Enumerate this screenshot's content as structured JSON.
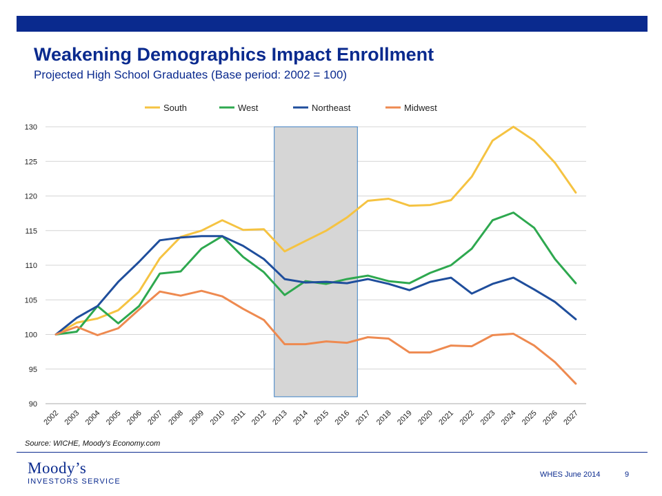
{
  "slide": {
    "title": "Weakening Demographics Impact Enrollment",
    "subtitle": "Projected High School Graduates (Base period: 2002 = 100)",
    "source": "Source: WICHE, Moody's Economy.com",
    "footer_text": "WHES June 2014",
    "page_number": "9",
    "logo_line1": "Moody’s",
    "logo_line2": "INVESTORS SERVICE",
    "brand_color": "#0a2a8e"
  },
  "chart_data": {
    "type": "line",
    "title": "",
    "xlabel": "",
    "ylabel": "",
    "ylim": [
      90,
      130
    ],
    "yticks": [
      90,
      95,
      100,
      105,
      110,
      115,
      120,
      125,
      130
    ],
    "grid": true,
    "legend": "top",
    "x": [
      "2002",
      "2003",
      "2004",
      "2005",
      "2006",
      "2007",
      "2008",
      "2009",
      "2010",
      "2011",
      "2012",
      "2013",
      "2014",
      "2015",
      "2016",
      "2017",
      "2018",
      "2019",
      "2020",
      "2021",
      "2022",
      "2023",
      "2024",
      "2025",
      "2026",
      "2027"
    ],
    "highlight_range": [
      "2013",
      "2016"
    ],
    "series": [
      {
        "name": "South",
        "color": "#f5c342",
        "values": [
          100,
          101.7,
          102.3,
          103.5,
          106.2,
          111,
          114.1,
          115,
          116.5,
          115.1,
          115.2,
          112,
          113.5,
          115,
          116.9,
          119.3,
          119.6,
          118.6,
          118.7,
          119.4,
          122.8,
          128,
          130,
          128,
          124.8,
          120.5
        ]
      },
      {
        "name": "West",
        "color": "#2ea84f",
        "values": [
          100,
          100.4,
          104.1,
          101.6,
          104.1,
          108.8,
          109.1,
          112.4,
          114.2,
          111.2,
          109,
          105.7,
          107.7,
          107.3,
          108,
          108.5,
          107.7,
          107.4,
          108.9,
          110,
          112.4,
          116.5,
          117.6,
          115.4,
          110.9,
          107.4
        ]
      },
      {
        "name": "Northeast",
        "color": "#1f4e9c",
        "values": [
          100,
          102.4,
          104.1,
          107.6,
          110.5,
          113.6,
          114,
          114.2,
          114.2,
          112.8,
          110.9,
          108,
          107.5,
          107.6,
          107.4,
          108,
          107.3,
          106.4,
          107.6,
          108.2,
          105.9,
          107.3,
          108.2,
          106.5,
          104.7,
          102.2
        ]
      },
      {
        "name": "Midwest",
        "color": "#ee8a50",
        "values": [
          100,
          101.1,
          99.9,
          100.9,
          103.6,
          106.2,
          105.6,
          106.3,
          105.5,
          103.7,
          102.1,
          98.6,
          98.6,
          99,
          98.8,
          99.6,
          99.4,
          97.4,
          97.4,
          98.4,
          98.3,
          99.9,
          100.1,
          98.4,
          96,
          92.9
        ]
      }
    ]
  }
}
